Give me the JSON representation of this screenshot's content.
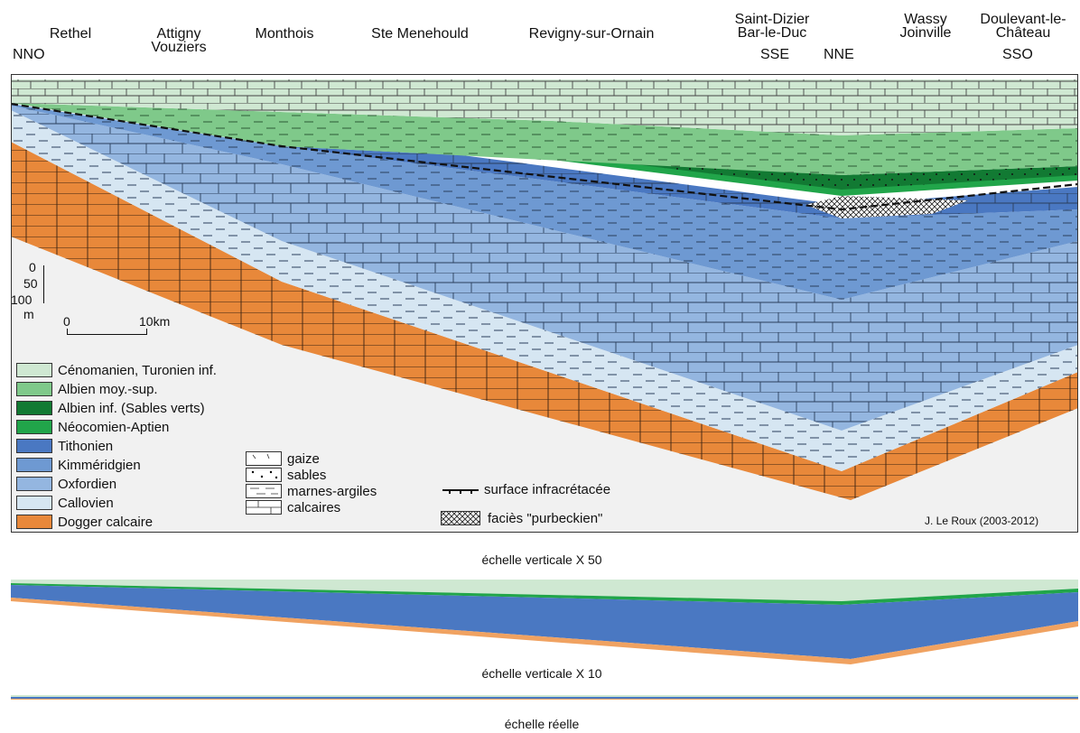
{
  "places": [
    {
      "id": "rethel",
      "l1": "Rethel",
      "l2": ""
    },
    {
      "id": "attigny",
      "l1": "Attigny",
      "l2": "Vouziers"
    },
    {
      "id": "monthois",
      "l1": "Monthois",
      "l2": ""
    },
    {
      "id": "stemenehould",
      "l1": "Ste Menehould",
      "l2": ""
    },
    {
      "id": "revigny",
      "l1": "Revigny-sur-Ornain",
      "l2": ""
    },
    {
      "id": "saintdizier",
      "l1": "Saint-Dizier",
      "l2": "Bar-le-Duc"
    },
    {
      "id": "wassy",
      "l1": "Wassy",
      "l2": "Joinville"
    },
    {
      "id": "doulevant",
      "l1": "Doulevant-le-",
      "l2": "Château"
    }
  ],
  "directions": {
    "nno": "NNO",
    "sse": "SSE",
    "nne": "NNE",
    "sso": "SSO"
  },
  "vertical_scale": {
    "t0": "0",
    "t50": "50",
    "t100": "100",
    "unit": "m"
  },
  "horizontal_scale": {
    "start": "0",
    "end": "10km"
  },
  "legend": [
    {
      "label": "Cénomanien, Turonien inf.",
      "color": "#cfe8d2"
    },
    {
      "label": "Albien moy.-sup.",
      "color": "#7fc98a"
    },
    {
      "label": "Albien inf. (Sables verts)",
      "color": "#127a33"
    },
    {
      "label": "Néocomien-Aptien",
      "color": "#21a54a"
    },
    {
      "label": "Tithonien",
      "color": "#4a78c2"
    },
    {
      "label": "Kimméridgien",
      "color": "#6e99d2"
    },
    {
      "label": "Oxfordien",
      "color": "#94b6e0"
    },
    {
      "label": "Callovien",
      "color": "#d6e6f2"
    },
    {
      "label": "Dogger calcaire",
      "color": "#e8883a"
    }
  ],
  "lithology": {
    "gaize": "gaize",
    "sables": "sables",
    "marnes": "marnes-argiles",
    "calcaires": "calcaires"
  },
  "symbols": {
    "surface": "surface infracrétacée",
    "purbeck": "faciès \"purbeckien\""
  },
  "credit": "J. Le Roux (2003-2012)",
  "captions": {
    "x50": "échelle verticale X 50",
    "x10": "échelle verticale X 10",
    "real": "échelle réelle"
  }
}
